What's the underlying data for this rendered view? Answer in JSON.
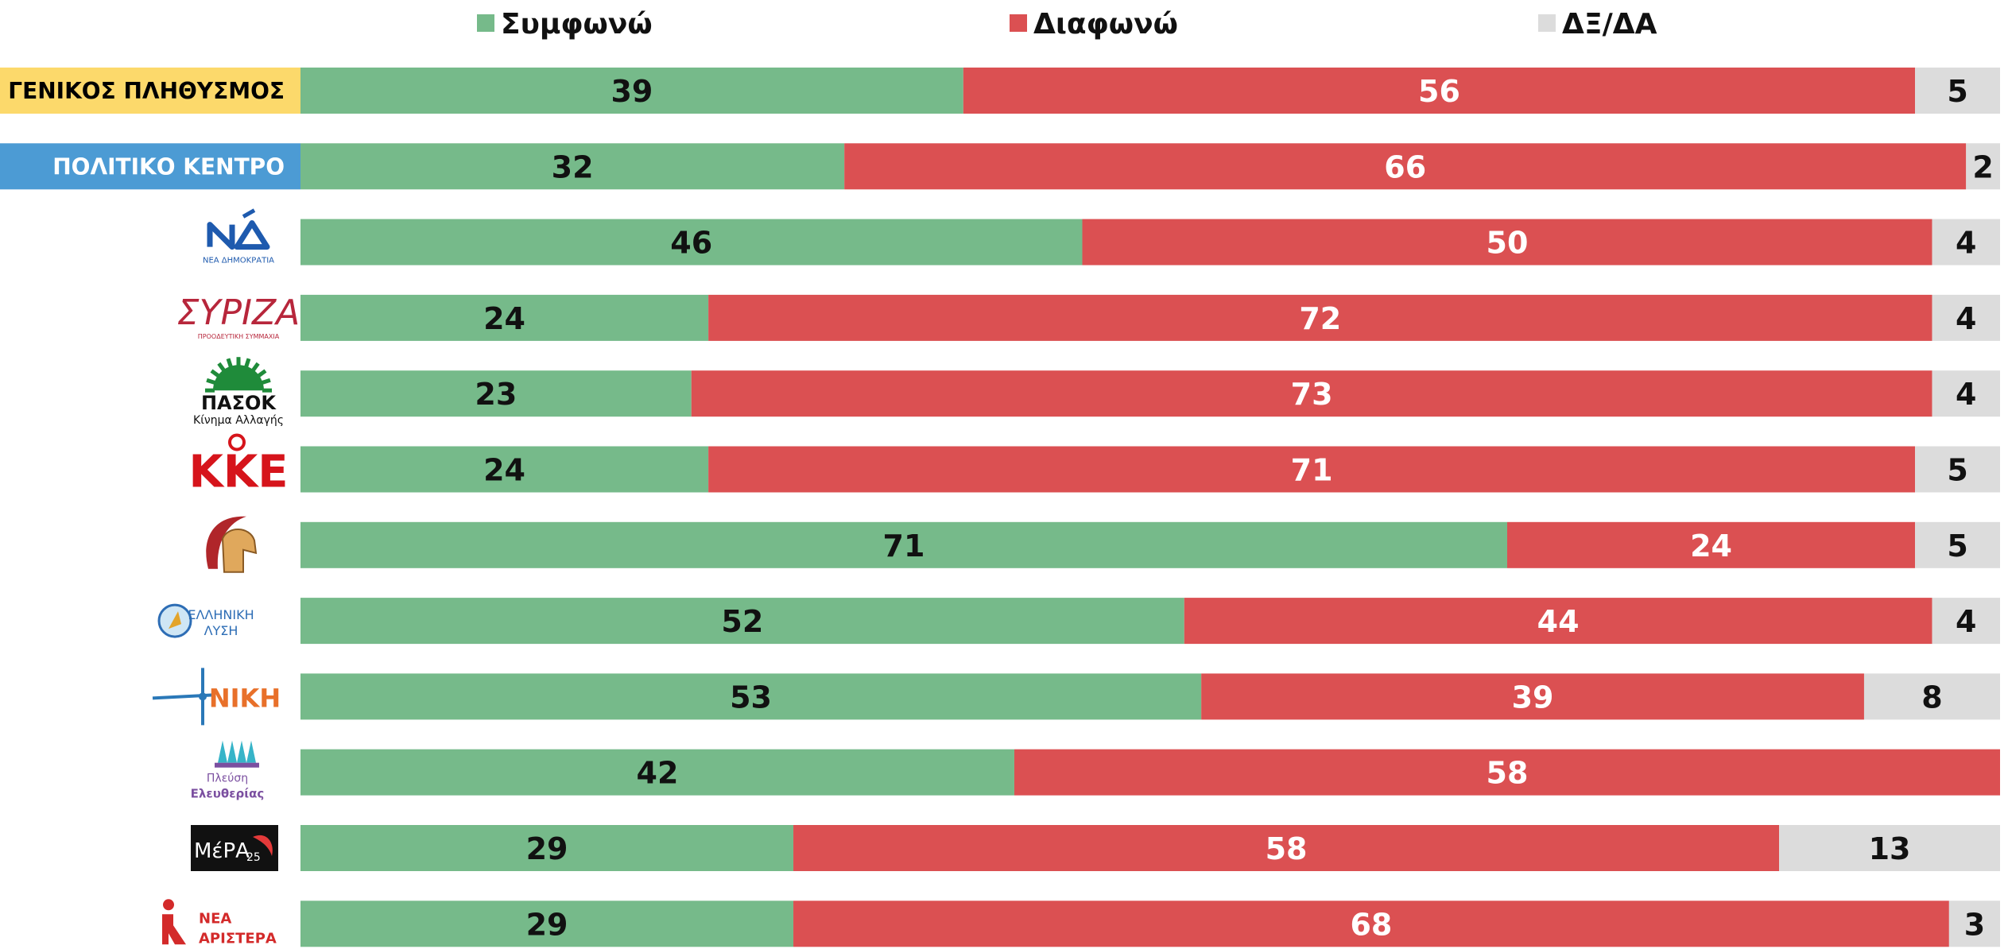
{
  "chart_data": {
    "type": "bar",
    "orientation": "horizontal",
    "stacked": true,
    "percent_scale": true,
    "xlim": [
      0,
      100
    ],
    "grid": false,
    "legend_position": "top",
    "title": "",
    "xlabel": "",
    "ylabel": "",
    "legend": [
      {
        "name": "Συμφωνώ",
        "color": "#76BA8A"
      },
      {
        "name": "Διαφωνώ",
        "color": "#DB5052"
      },
      {
        "name": "ΔΞ/ΔΑ",
        "color": "#DCDCDC"
      }
    ],
    "categories": [
      {
        "label": "ΓΕΝΙΚΟΣ ΠΛΗΘΥΣΜΟΣ",
        "kind": "text-badge",
        "badge_color": "#FCD96B",
        "text_color": "#000000"
      },
      {
        "label": "ΠΟΛΙΤΙΚΟ ΚΕΝΤΡΟ",
        "kind": "text-badge",
        "badge_color": "#4C9BD4",
        "text_color": "#FFFFFF"
      },
      {
        "label": "ΝΔ",
        "kind": "logo",
        "logo": "nd-logo",
        "logo_text": "ΝΕΑ ΔΗΜΟΚΡΑΤΙΑ"
      },
      {
        "label": "ΣΥΡΙΖΑ",
        "kind": "logo",
        "logo": "syriza-logo",
        "logo_text": "ΣΥΡΙΖΑ",
        "logo_subtext": "ΠΡΟΟΔΕΥΤΙΚΗ ΣΥΜΜΑΧΙΑ"
      },
      {
        "label": "ΠΑΣΟΚ",
        "kind": "logo",
        "logo": "pasok-logo",
        "logo_text": "ΠΑΣΟΚ",
        "logo_subtext": "Κίνημα Αλλαγής"
      },
      {
        "label": "ΚΚΕ",
        "kind": "logo",
        "logo": "kke-logo",
        "logo_text": "ΚΚΕ"
      },
      {
        "label": "Σπαρτιάτες",
        "kind": "logo",
        "logo": "spartan-helmet-logo"
      },
      {
        "label": "Ελληνική Λύση",
        "kind": "logo",
        "logo": "elliniki-lysi-logo",
        "logo_text": "ΕΛΛΗΝΙΚΗ",
        "logo_subtext": "ΛΥΣΗ"
      },
      {
        "label": "ΝΙΚΗ",
        "kind": "logo",
        "logo": "niki-logo",
        "logo_text": "ΝΙΚΗ"
      },
      {
        "label": "Πλεύση Ελευθερίας",
        "kind": "logo",
        "logo": "plefsi-logo",
        "logo_text": "Πλεύση",
        "logo_subtext": "Ελευθερίας"
      },
      {
        "label": "ΜέΡΑ25",
        "kind": "logo",
        "logo": "mera25-logo",
        "logo_text": "ΜέΡΑ",
        "logo_subtext": "25"
      },
      {
        "label": "Νέα Αριστερά",
        "kind": "logo",
        "logo": "nea-aristera-logo",
        "logo_text": "ΝΕΑ",
        "logo_subtext": "ΑΡΙΣΤΕΡΑ"
      }
    ],
    "series": [
      {
        "name": "Συμφωνώ",
        "color": "#76BA8A",
        "label_color": "#111111",
        "values": [
          39,
          32,
          46,
          24,
          23,
          24,
          71,
          52,
          53,
          42,
          29,
          29
        ]
      },
      {
        "name": "Διαφωνώ",
        "color": "#DB5052",
        "label_color": "#FFFFFF",
        "values": [
          56,
          66,
          50,
          72,
          73,
          71,
          24,
          44,
          39,
          58,
          58,
          68
        ]
      },
      {
        "name": "ΔΞ/ΔΑ",
        "color": "#DCDCDC",
        "label_color": "#111111",
        "values": [
          5,
          2,
          4,
          4,
          4,
          5,
          5,
          4,
          8,
          null,
          13,
          3
        ]
      }
    ]
  }
}
